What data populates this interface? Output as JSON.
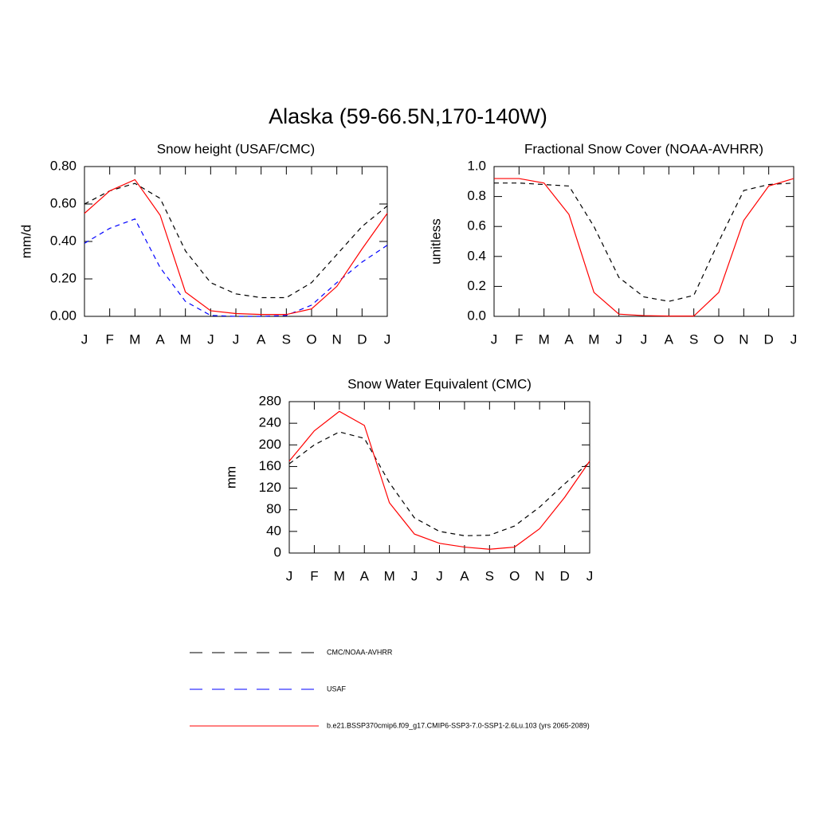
{
  "title": "Alaska (59-66.5N,170-140W)",
  "chart_data": [
    {
      "type": "line",
      "title": "Snow height (USAF/CMC)",
      "ylabel": "mm/d",
      "categories": [
        "J",
        "F",
        "M",
        "A",
        "M",
        "J",
        "J",
        "A",
        "S",
        "O",
        "N",
        "D",
        "J"
      ],
      "ylim": [
        0,
        0.8
      ],
      "yticks": [
        {
          "value": 0,
          "label": "0.00"
        },
        {
          "value": 0.2,
          "label": "0.20"
        },
        {
          "value": 0.4,
          "label": "0.40"
        },
        {
          "value": 0.6,
          "label": "0.60"
        },
        {
          "value": 0.8,
          "label": "0.80"
        }
      ],
      "series": [
        {
          "name": "CMC/NOAA-AVHRR",
          "color": "#000000",
          "dashed": true,
          "values": [
            0.6,
            0.67,
            0.71,
            0.63,
            0.35,
            0.18,
            0.12,
            0.1,
            0.1,
            0.18,
            0.33,
            0.48,
            0.59
          ]
        },
        {
          "name": "USAF",
          "color": "#0000ff",
          "dashed": true,
          "values": [
            0.39,
            0.47,
            0.52,
            0.26,
            0.08,
            0.005,
            0.0,
            0.0,
            0.005,
            0.06,
            0.18,
            0.29,
            0.38
          ]
        },
        {
          "name": "b.e21.BSSP370cmip6.f09_g17.CMIP6-SSP3-7.0-SSP1-2.6Lu.103 (yrs 2065-2089)",
          "color": "#ff0000",
          "dashed": false,
          "values": [
            0.55,
            0.67,
            0.73,
            0.54,
            0.13,
            0.03,
            0.015,
            0.01,
            0.01,
            0.04,
            0.16,
            0.36,
            0.55
          ]
        }
      ]
    },
    {
      "type": "line",
      "title": "Fractional Snow Cover (NOAA-AVHRR)",
      "ylabel": "unitless",
      "categories": [
        "J",
        "F",
        "M",
        "A",
        "M",
        "J",
        "J",
        "A",
        "S",
        "O",
        "N",
        "D",
        "J"
      ],
      "ylim": [
        0,
        1
      ],
      "yticks": [
        {
          "value": 0,
          "label": "0.0"
        },
        0.2,
        0.4,
        0.6,
        0.8,
        {
          "value": 1,
          "label": "1.0"
        }
      ],
      "series": [
        {
          "name": "CMC/NOAA-AVHRR",
          "color": "#000000",
          "dashed": true,
          "values": [
            0.89,
            0.89,
            0.88,
            0.87,
            0.6,
            0.26,
            0.13,
            0.1,
            0.14,
            0.5,
            0.84,
            0.88,
            0.89
          ]
        },
        {
          "name": "b.e21.BSSP370cmip6.f09_g17.CMIP6-SSP3-7.0-SSP1-2.6Lu.103 (yrs 2065-2089)",
          "color": "#ff0000",
          "dashed": false,
          "values": [
            0.92,
            0.92,
            0.89,
            0.68,
            0.16,
            0.015,
            0.005,
            0.002,
            0.002,
            0.16,
            0.64,
            0.87,
            0.92
          ]
        }
      ]
    },
    {
      "type": "line",
      "title": "Snow Water Equivalent (CMC)",
      "ylabel": "mm",
      "categories": [
        "J",
        "F",
        "M",
        "A",
        "M",
        "J",
        "J",
        "A",
        "S",
        "O",
        "N",
        "D",
        "J"
      ],
      "ylim": [
        0,
        280
      ],
      "yticks": [
        0,
        40,
        80,
        120,
        160,
        200,
        240,
        280
      ],
      "series": [
        {
          "name": "CMC/NOAA-AVHRR",
          "color": "#000000",
          "dashed": true,
          "values": [
            165,
            200,
            224,
            212,
            130,
            65,
            40,
            32,
            33,
            50,
            85,
            128,
            168
          ]
        },
        {
          "name": "b.e21.BSSP370cmip6.f09_g17.CMIP6-SSP3-7.0-SSP1-2.6Lu.103 (yrs 2065-2089)",
          "color": "#ff0000",
          "dashed": false,
          "values": [
            170,
            226,
            262,
            236,
            93,
            35,
            18,
            11,
            7,
            11,
            45,
            103,
            170
          ]
        }
      ]
    }
  ]
}
